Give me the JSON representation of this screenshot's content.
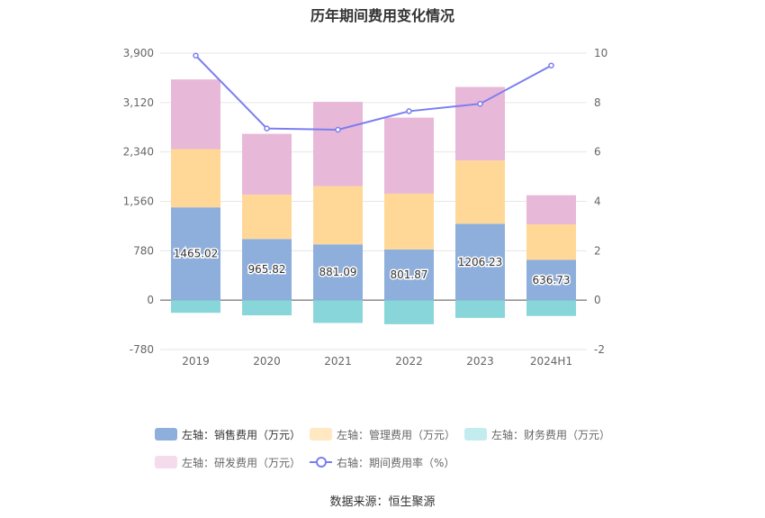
{
  "title": "历年期间费用变化情况",
  "source": "数据来源：恒生聚源",
  "colors": {
    "sales": "#8eaedc",
    "admin": "#ffd898",
    "finance": "#89d6da",
    "rnd": "#e8b8d8",
    "rate": "#7b7ef1"
  },
  "legend": [
    {
      "label": "左轴：销售费用（万元）",
      "color": "#8eaedc",
      "type": "bar"
    },
    {
      "label": "左轴：管理费用（万元）",
      "color": "#ffe8c2",
      "type": "bar"
    },
    {
      "label": "左轴：财务费用（万元）",
      "color": "#c2ecee",
      "type": "bar"
    },
    {
      "label": "左轴：研发费用（万元）",
      "color": "#f5dcec",
      "type": "bar"
    },
    {
      "label": "右轴：期间费用率（%）",
      "color": "#7b7ef1",
      "type": "line"
    }
  ],
  "chart_data": {
    "type": "bar",
    "stacked": true,
    "categories": [
      "2019",
      "2020",
      "2021",
      "2022",
      "2023",
      "2024H1"
    ],
    "y_left": {
      "ticks": [
        "-780",
        "0",
        "780",
        "1,560",
        "2,340",
        "3,120",
        "3,900"
      ],
      "range": [
        -780,
        3900
      ]
    },
    "y_right": {
      "ticks": [
        "-2",
        "0",
        "2",
        "4",
        "6",
        "8",
        "10"
      ],
      "range": [
        -2,
        10
      ]
    },
    "series": [
      {
        "name": "左轴：销售费用（万元）",
        "key": "sales",
        "axis": "left",
        "values": [
          1465.02,
          965.82,
          881.09,
          801.87,
          1206.23,
          636.73
        ],
        "labels": [
          "1465.02",
          "965.82",
          "881.09",
          "801.87",
          "1206.23",
          "636.73"
        ]
      },
      {
        "name": "左轴：管理费用（万元）",
        "key": "admin",
        "axis": "left",
        "values": [
          920,
          700,
          920,
          880,
          1000,
          560
        ]
      },
      {
        "name": "左轴：财务费用（万元）",
        "key": "finance",
        "axis": "left",
        "values": [
          -200,
          -240,
          -360,
          -380,
          -280,
          -250
        ]
      },
      {
        "name": "左轴：研发费用（万元）",
        "key": "rnd",
        "axis": "left",
        "values": [
          1100,
          960,
          1330,
          1200,
          1160,
          460
        ]
      },
      {
        "name": "右轴：期间费用率（%）",
        "key": "rate",
        "axis": "right",
        "type": "line",
        "values": [
          9.9,
          6.95,
          6.9,
          7.65,
          7.95,
          9.5
        ]
      }
    ],
    "grid": true
  }
}
